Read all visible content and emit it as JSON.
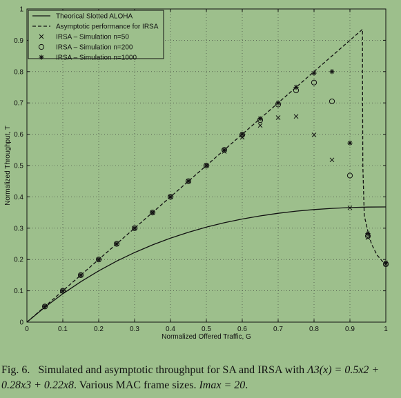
{
  "chart_data": {
    "type": "line",
    "xlabel": "Normalized Offered Traffic, G",
    "ylabel": "Normalized Throughput, T",
    "xlim": [
      0,
      1
    ],
    "ylim": [
      0,
      1
    ],
    "xticks": [
      "0",
      "0.1",
      "0.2",
      "0.3",
      "0.4",
      "0.5",
      "0.6",
      "0.7",
      "0.8",
      "0.9",
      "1"
    ],
    "yticks": [
      "0",
      "0.1",
      "0.2",
      "0.3",
      "0.4",
      "0.5",
      "0.6",
      "0.7",
      "0.8",
      "0.9",
      "1"
    ],
    "grid": true,
    "legend_position": "top-left",
    "series": [
      {
        "name": "Theorical Slotted ALOHA",
        "style": "solid",
        "x": [
          0,
          0.05,
          0.1,
          0.15,
          0.2,
          0.25,
          0.3,
          0.35,
          0.4,
          0.45,
          0.5,
          0.55,
          0.6,
          0.65,
          0.7,
          0.75,
          0.8,
          0.85,
          0.9,
          0.95,
          1
        ],
        "y": [
          0,
          0.0476,
          0.0905,
          0.1291,
          0.1637,
          0.1947,
          0.2222,
          0.2466,
          0.2681,
          0.287,
          0.3033,
          0.3174,
          0.3293,
          0.3393,
          0.3476,
          0.3543,
          0.3595,
          0.3633,
          0.3659,
          0.3674,
          0.3679
        ]
      },
      {
        "name": "Asymptotic performance for IRSA",
        "style": "dashed",
        "x": [
          0,
          0.1,
          0.2,
          0.3,
          0.4,
          0.5,
          0.6,
          0.7,
          0.8,
          0.9,
          0.935,
          0.935,
          0.936,
          0.94,
          0.95,
          0.96,
          0.975,
          0.99,
          1
        ],
        "y": [
          0,
          0.1,
          0.2,
          0.3,
          0.4,
          0.5,
          0.6,
          0.7,
          0.8,
          0.9,
          0.935,
          0.8,
          0.5,
          0.34,
          0.29,
          0.25,
          0.215,
          0.195,
          0.185
        ]
      },
      {
        "name": "IRSA – Simulation n=50",
        "marker": "x",
        "x": [
          0.05,
          0.1,
          0.15,
          0.2,
          0.25,
          0.3,
          0.35,
          0.4,
          0.45,
          0.5,
          0.55,
          0.6,
          0.65,
          0.7,
          0.75,
          0.8,
          0.85,
          0.9,
          0.95,
          1
        ],
        "y": [
          0.05,
          0.1,
          0.15,
          0.2,
          0.25,
          0.3,
          0.35,
          0.4,
          0.45,
          0.5,
          0.545,
          0.59,
          0.628,
          0.653,
          0.657,
          0.598,
          0.518,
          0.365,
          0.27,
          0.185
        ]
      },
      {
        "name": "IRSA – Simulation n=200",
        "marker": "o",
        "x": [
          0.05,
          0.1,
          0.15,
          0.2,
          0.25,
          0.3,
          0.35,
          0.4,
          0.45,
          0.5,
          0.55,
          0.6,
          0.65,
          0.7,
          0.75,
          0.8,
          0.85,
          0.9,
          0.95,
          1
        ],
        "y": [
          0.05,
          0.1,
          0.15,
          0.2,
          0.25,
          0.3,
          0.35,
          0.4,
          0.45,
          0.5,
          0.55,
          0.598,
          0.645,
          0.695,
          0.74,
          0.765,
          0.705,
          0.468,
          0.275,
          0.185
        ]
      },
      {
        "name": "IRSA – Simulation n=1000",
        "marker": "*",
        "x": [
          0.05,
          0.1,
          0.15,
          0.2,
          0.25,
          0.3,
          0.35,
          0.4,
          0.45,
          0.5,
          0.55,
          0.6,
          0.65,
          0.7,
          0.75,
          0.8,
          0.85,
          0.9,
          0.95,
          1
        ],
        "y": [
          0.05,
          0.1,
          0.15,
          0.2,
          0.25,
          0.3,
          0.35,
          0.4,
          0.45,
          0.5,
          0.55,
          0.6,
          0.65,
          0.7,
          0.75,
          0.795,
          0.8,
          0.572,
          0.283,
          0.19
        ]
      }
    ]
  },
  "caption": {
    "label": "Fig. 6.",
    "text_a": "Simulated and asymptotic throughput for SA and IRSA with ",
    "math_a": "Λ3(x) = 0.5x2 + 0.28x3 + 0.22x8",
    "text_b": ". Various MAC frame sizes. ",
    "math_b": "Imax = 20",
    "text_c": "."
  }
}
